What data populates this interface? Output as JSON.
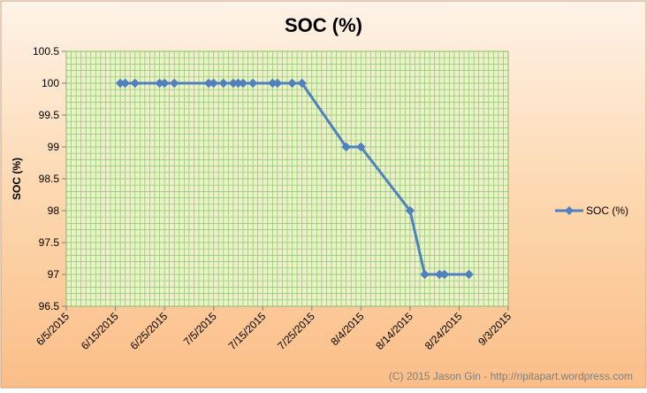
{
  "chart_data": {
    "type": "line",
    "title": "SOC (%)",
    "ylabel": "SOC (%)",
    "xlabel": "",
    "ylim": [
      96.5,
      100.5
    ],
    "yticks": [
      "96.5",
      "97",
      "97.5",
      "98",
      "98.5",
      "99",
      "99.5",
      "100",
      "100.5"
    ],
    "xlim": [
      "2015-06-05",
      "2015-09-03"
    ],
    "xticks": [
      "6/5/2015",
      "6/15/2015",
      "6/25/2015",
      "7/5/2015",
      "7/15/2015",
      "7/25/2015",
      "8/4/2015",
      "8/14/2015",
      "8/24/2015",
      "9/3/2015"
    ],
    "grid": true,
    "legend_position": "right",
    "series": [
      {
        "name": "SOC (%)",
        "color": "#4f81bd",
        "x": [
          "2015-06-16",
          "2015-06-17",
          "2015-06-19",
          "2015-06-24",
          "2015-06-25",
          "2015-06-27",
          "2015-07-04",
          "2015-07-05",
          "2015-07-07",
          "2015-07-09",
          "2015-07-10",
          "2015-07-11",
          "2015-07-13",
          "2015-07-17",
          "2015-07-18",
          "2015-07-21",
          "2015-07-23",
          "2015-08-01",
          "2015-08-04",
          "2015-08-14",
          "2015-08-17",
          "2015-08-20",
          "2015-08-21",
          "2015-08-26"
        ],
        "y": [
          100,
          100,
          100,
          100,
          100,
          100,
          100,
          100,
          100,
          100,
          100,
          100,
          100,
          100,
          100,
          100,
          100,
          99,
          99,
          98,
          97,
          97,
          97,
          97
        ]
      }
    ]
  },
  "footer": {
    "credit": "(C) 2015 Jason Gin - http://ripitapart.wordpress.com"
  },
  "colors": {
    "background_top": "#fde9d9",
    "background_bottom": "#fbc08f",
    "plot_background": "#ebf1c8",
    "gridline": "#8dc56b",
    "line": "#4f81bd"
  }
}
